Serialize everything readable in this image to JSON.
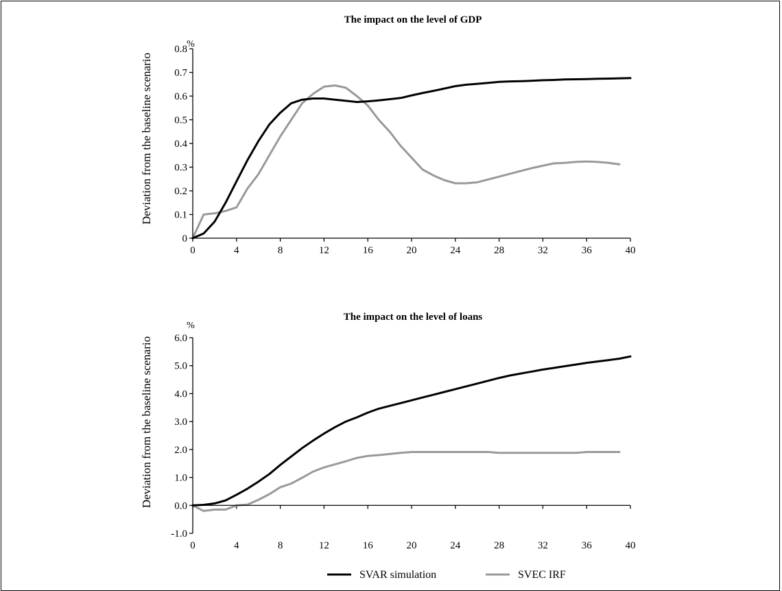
{
  "legend": [
    {
      "label": "SVAR simulation",
      "color": "#000000"
    },
    {
      "label": "SVEC IRF",
      "color": "#999999"
    }
  ],
  "chart_data": [
    {
      "type": "line",
      "title": "The impact on the level of GDP",
      "ylabel": "Deviation from the baseline scenario",
      "unit": "%",
      "xlim": [
        0,
        40
      ],
      "ylim": [
        0,
        0.8
      ],
      "xticks": [
        0,
        4,
        8,
        12,
        16,
        20,
        24,
        28,
        32,
        36,
        40
      ],
      "yticks": [
        0,
        0.1,
        0.2,
        0.3,
        0.4,
        0.5,
        0.6,
        0.7,
        0.8
      ],
      "ytick_labels": [
        "0",
        "0.1",
        "0.2",
        "0.3",
        "0.4",
        "0.5",
        "0.6",
        "0.7",
        "0.8"
      ],
      "series": [
        {
          "name": "SVAR simulation",
          "color": "#000000",
          "x": [
            0,
            1,
            2,
            3,
            4,
            5,
            6,
            7,
            8,
            9,
            10,
            11,
            12,
            13,
            14,
            15,
            16,
            17,
            18,
            19,
            20,
            21,
            22,
            23,
            24,
            25,
            26,
            27,
            28,
            29,
            30,
            31,
            32,
            33,
            34,
            35,
            36,
            37,
            38,
            39,
            40
          ],
          "values": [
            0,
            0.02,
            0.07,
            0.15,
            0.24,
            0.33,
            0.41,
            0.48,
            0.53,
            0.57,
            0.585,
            0.59,
            0.59,
            0.585,
            0.58,
            0.575,
            0.578,
            0.582,
            0.587,
            0.592,
            0.603,
            0.613,
            0.622,
            0.632,
            0.642,
            0.648,
            0.652,
            0.656,
            0.66,
            0.662,
            0.663,
            0.665,
            0.667,
            0.668,
            0.67,
            0.671,
            0.672,
            0.673,
            0.674,
            0.675,
            0.676
          ]
        },
        {
          "name": "SVEC IRF",
          "color": "#999999",
          "x": [
            0,
            1,
            2,
            3,
            4,
            5,
            6,
            7,
            8,
            9,
            10,
            11,
            12,
            13,
            14,
            15,
            16,
            17,
            18,
            19,
            20,
            21,
            22,
            23,
            24,
            25,
            26,
            27,
            28,
            29,
            30,
            31,
            32,
            33,
            34,
            35,
            36,
            37,
            38,
            39
          ],
          "values": [
            0,
            0.1,
            0.105,
            0.115,
            0.13,
            0.21,
            0.27,
            0.35,
            0.43,
            0.5,
            0.57,
            0.61,
            0.64,
            0.645,
            0.635,
            0.6,
            0.56,
            0.5,
            0.45,
            0.39,
            0.34,
            0.29,
            0.265,
            0.245,
            0.232,
            0.232,
            0.236,
            0.248,
            0.26,
            0.272,
            0.284,
            0.296,
            0.306,
            0.316,
            0.318,
            0.322,
            0.324,
            0.322,
            0.318,
            0.312
          ]
        }
      ]
    },
    {
      "type": "line",
      "title": "The impact on the level of loans",
      "ylabel": "Deviation from the baseline scenario",
      "unit": "%",
      "xlim": [
        0,
        40
      ],
      "ylim": [
        -1.0,
        6.0
      ],
      "xticks": [
        0,
        4,
        8,
        12,
        16,
        20,
        24,
        28,
        32,
        36,
        40
      ],
      "yticks": [
        -1,
        0,
        1,
        2,
        3,
        4,
        5,
        6
      ],
      "ytick_labels": [
        "-1.0",
        "0.0",
        "1.0",
        "2.0",
        "3.0",
        "4.0",
        "5.0",
        "6.0"
      ],
      "series": [
        {
          "name": "SVAR simulation",
          "color": "#000000",
          "x": [
            0,
            1,
            2,
            3,
            4,
            5,
            6,
            7,
            8,
            9,
            10,
            11,
            12,
            13,
            14,
            15,
            16,
            17,
            18,
            19,
            20,
            21,
            22,
            23,
            24,
            25,
            26,
            27,
            28,
            29,
            30,
            31,
            32,
            33,
            34,
            35,
            36,
            37,
            38,
            39,
            40
          ],
          "values": [
            0,
            0.02,
            0.07,
            0.18,
            0.38,
            0.6,
            0.85,
            1.12,
            1.45,
            1.75,
            2.05,
            2.32,
            2.57,
            2.8,
            3.0,
            3.15,
            3.32,
            3.46,
            3.56,
            3.66,
            3.76,
            3.86,
            3.96,
            4.06,
            4.16,
            4.26,
            4.36,
            4.46,
            4.56,
            4.65,
            4.72,
            4.79,
            4.86,
            4.92,
            4.98,
            5.04,
            5.1,
            5.15,
            5.2,
            5.25,
            5.33
          ]
        },
        {
          "name": "SVEC IRF",
          "color": "#999999",
          "x": [
            0,
            1,
            2,
            3,
            4,
            5,
            6,
            7,
            8,
            9,
            10,
            11,
            12,
            13,
            14,
            15,
            16,
            17,
            18,
            19,
            20,
            21,
            22,
            23,
            24,
            25,
            26,
            27,
            28,
            29,
            30,
            31,
            32,
            33,
            34,
            35,
            36,
            37,
            38,
            39
          ],
          "values": [
            0,
            -0.2,
            -0.15,
            -0.15,
            0,
            0.03,
            0.2,
            0.4,
            0.65,
            0.78,
            0.99,
            1.21,
            1.36,
            1.47,
            1.58,
            1.7,
            1.77,
            1.8,
            1.84,
            1.88,
            1.91,
            1.91,
            1.91,
            1.91,
            1.91,
            1.91,
            1.91,
            1.91,
            1.88,
            1.88,
            1.88,
            1.88,
            1.88,
            1.88,
            1.88,
            1.88,
            1.91,
            1.91,
            1.91,
            1.91
          ]
        }
      ]
    }
  ]
}
